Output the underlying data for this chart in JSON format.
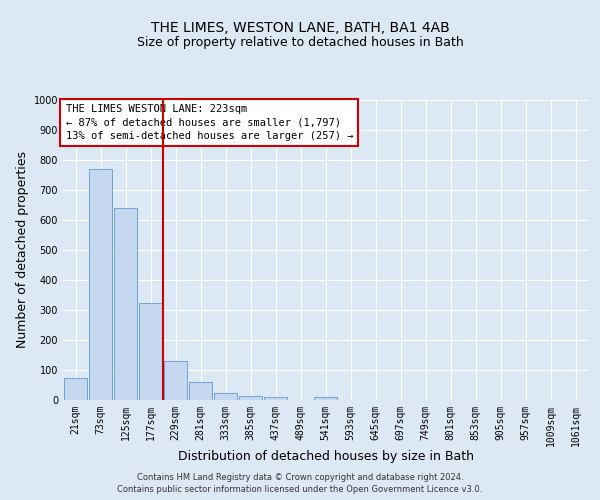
{
  "title": "THE LIMES, WESTON LANE, BATH, BA1 4AB",
  "subtitle": "Size of property relative to detached houses in Bath",
  "xlabel": "Distribution of detached houses by size in Bath",
  "ylabel": "Number of detached properties",
  "categories": [
    "21sqm",
    "73sqm",
    "125sqm",
    "177sqm",
    "229sqm",
    "281sqm",
    "333sqm",
    "385sqm",
    "437sqm",
    "489sqm",
    "541sqm",
    "593sqm",
    "645sqm",
    "697sqm",
    "749sqm",
    "801sqm",
    "853sqm",
    "905sqm",
    "957sqm",
    "1009sqm",
    "1061sqm"
  ],
  "values": [
    75,
    770,
    640,
    325,
    130,
    60,
    25,
    15,
    10,
    0,
    10,
    0,
    0,
    0,
    0,
    0,
    0,
    0,
    0,
    0,
    0
  ],
  "bar_color": "#c5d8f0",
  "bar_edge_color": "#5b9bd5",
  "bg_color": "#dce9f5",
  "plot_bg_color": "#dce9f5",
  "grid_color": "#ffffff",
  "vline_color": "#cc0000",
  "vline_pos": 3.5,
  "ylim": [
    0,
    1000
  ],
  "yticks": [
    0,
    100,
    200,
    300,
    400,
    500,
    600,
    700,
    800,
    900,
    1000
  ],
  "annotation_text": "THE LIMES WESTON LANE: 223sqm\n← 87% of detached houses are smaller (1,797)\n13% of semi-detached houses are larger (257) →",
  "annotation_box_color": "#ffffff",
  "annotation_box_edge": "#cc0000",
  "footer_line1": "Contains HM Land Registry data © Crown copyright and database right 2024.",
  "footer_line2": "Contains public sector information licensed under the Open Government Licence v3.0.",
  "title_fontsize": 10,
  "subtitle_fontsize": 9,
  "axis_label_fontsize": 9,
  "tick_fontsize": 7,
  "annotation_fontsize": 7.5,
  "footer_fontsize": 6
}
